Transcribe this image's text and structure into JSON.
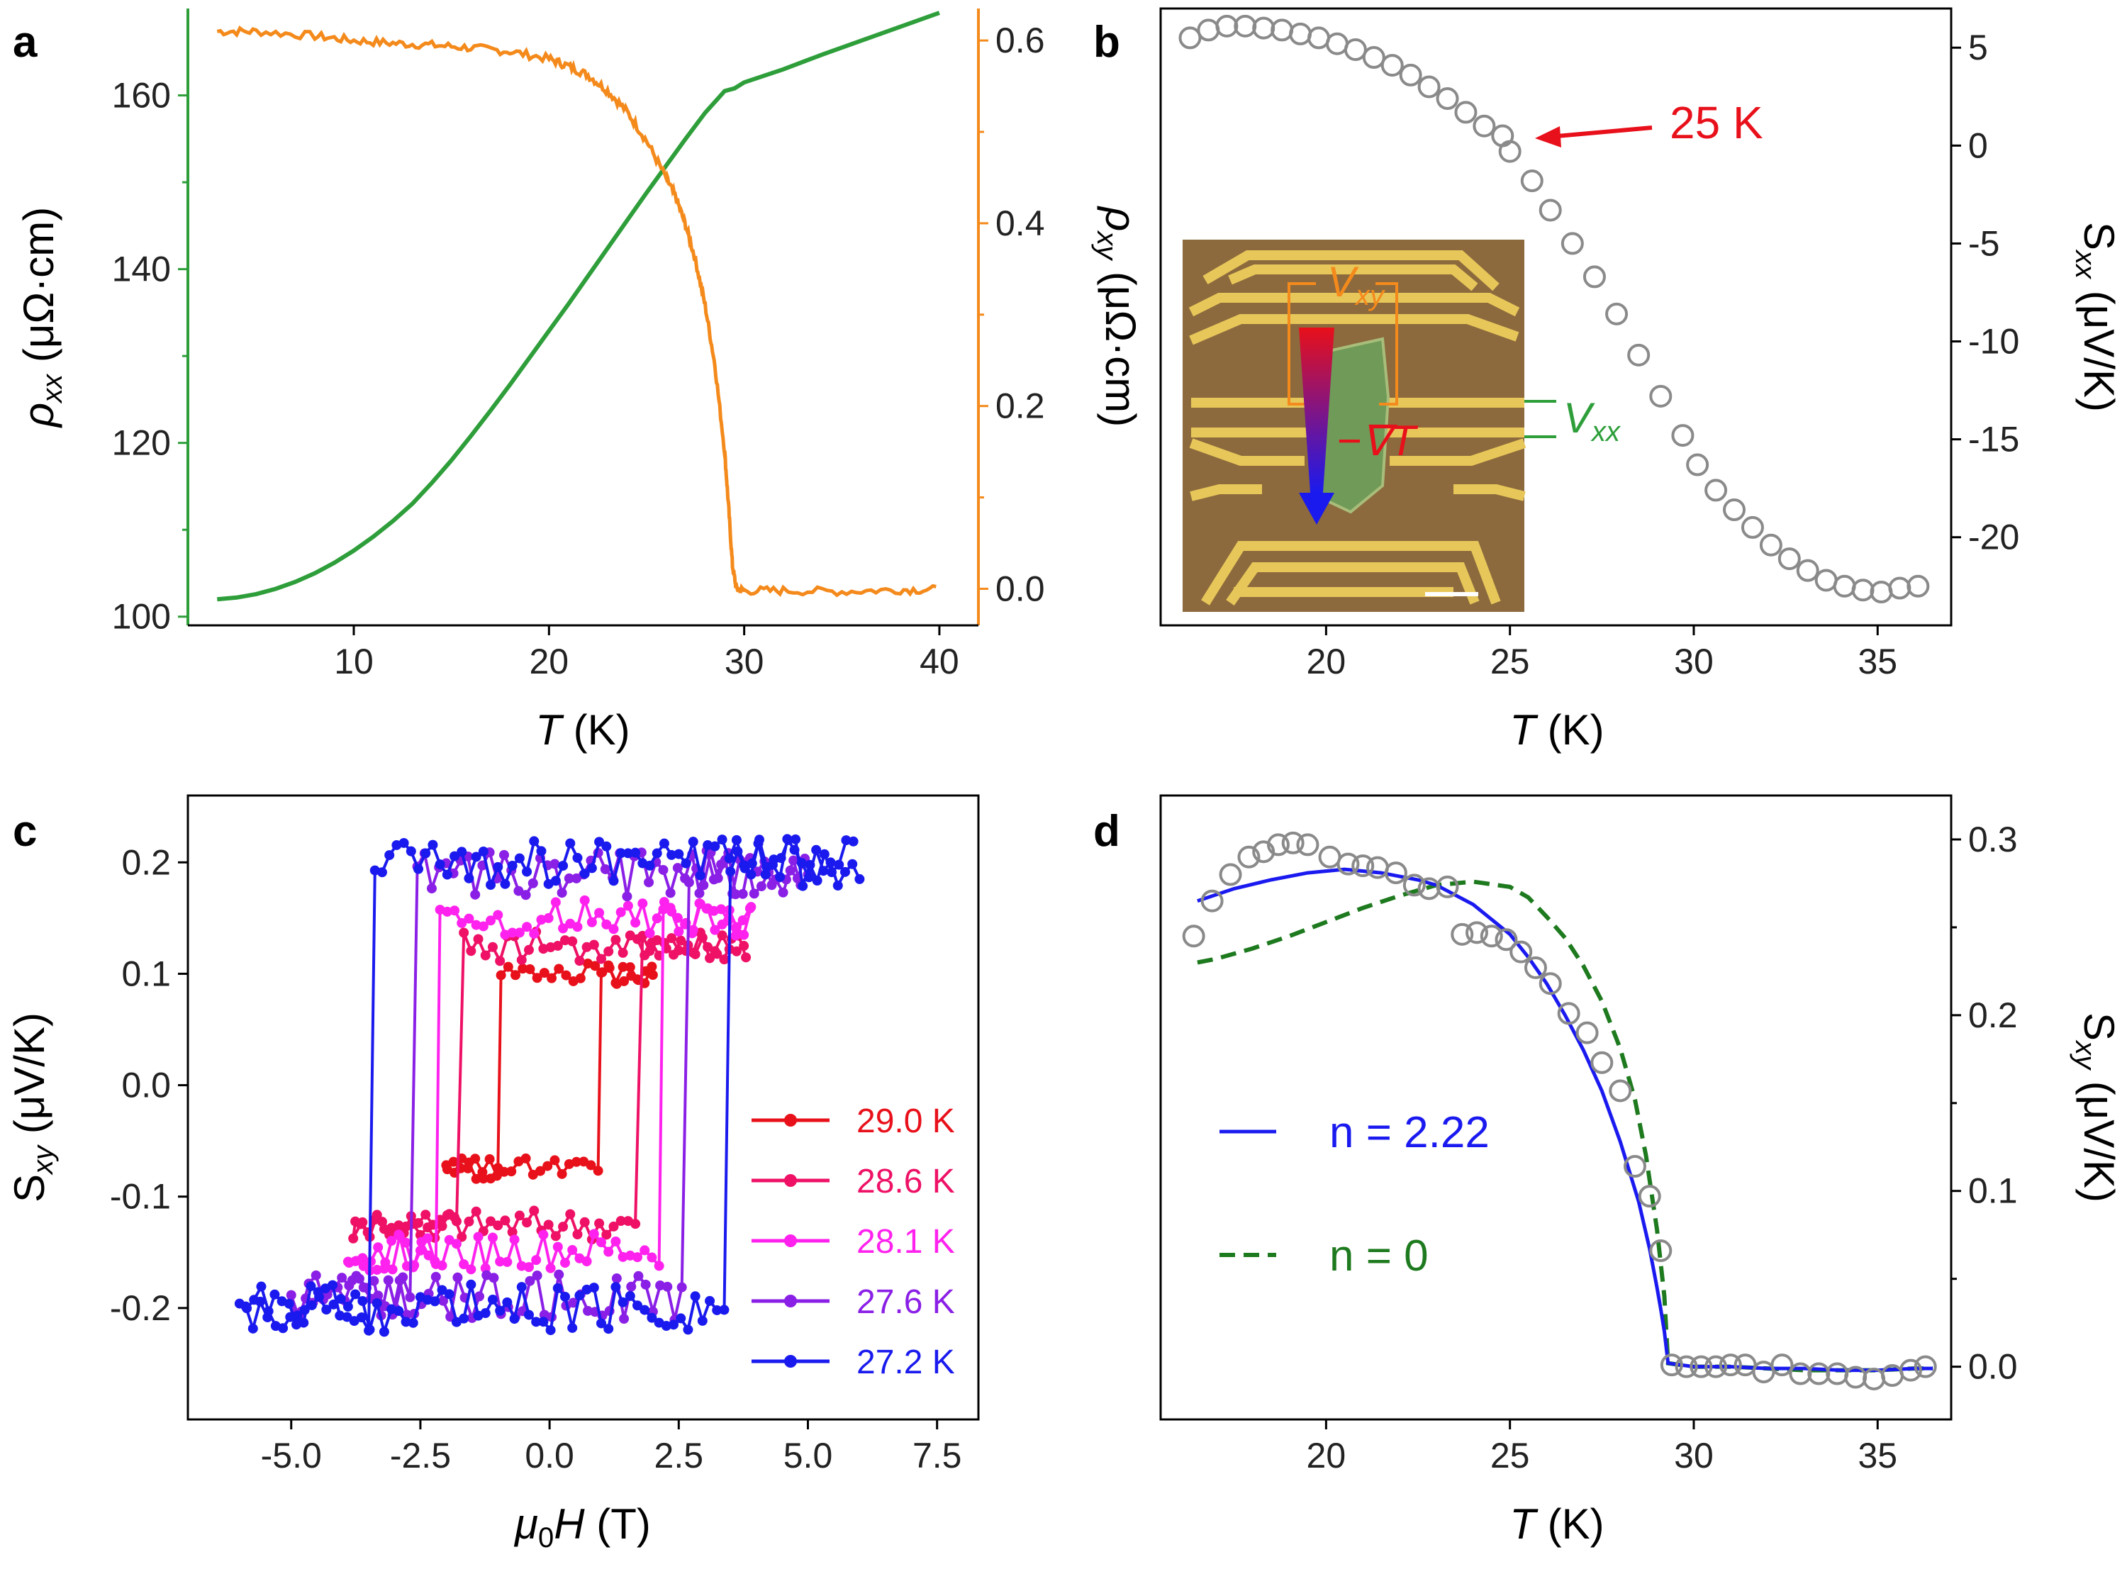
{
  "colors": {
    "green": "#2e9e3a",
    "orange": "#f48a1c",
    "gray_marker": "#8a8a8a",
    "red": "#e8101a",
    "crimson": "#ee1166",
    "magenta": "#ff22ee",
    "purple": "#8a1fe6",
    "blue": "#1a1aee",
    "fit_blue": "#1a1af0",
    "fit_green": "#1e7a1e"
  },
  "chart_data": [
    {
      "panel": "a",
      "type": "line",
      "xlabel": "T (K)",
      "xlabel_main": "T",
      "xlabel_unit": " (K)",
      "ylabel_left": "ρxx (μΩ·cm)",
      "ylabel_right": "ρxy (μΩ·cm)",
      "xlim": [
        1.5,
        42
      ],
      "ylim_left": [
        99,
        170
      ],
      "ylim_right": [
        -0.04,
        0.635
      ],
      "xticks": [
        10,
        20,
        30,
        40
      ],
      "xtick_labels": [
        "10",
        "20",
        "30",
        "40"
      ],
      "yticks_left": [
        100,
        120,
        140,
        160
      ],
      "ytick_labels_left": [
        "100",
        "120",
        "140",
        "160"
      ],
      "yticks_right": [
        0.0,
        0.2,
        0.4,
        0.6
      ],
      "ytick_labels_right": [
        "0.0",
        "0.2",
        "0.4",
        "0.6"
      ],
      "series": [
        {
          "axis": "left",
          "x": [
            3,
            4,
            5,
            6,
            7,
            8,
            9,
            10,
            11,
            12,
            13,
            14,
            15,
            16,
            17,
            18,
            19,
            20,
            21,
            22,
            23,
            24,
            25,
            26,
            27,
            28,
            29,
            29.5,
            30,
            32,
            34,
            36,
            38,
            40
          ],
          "y": [
            102,
            102.2,
            102.6,
            103.2,
            104,
            105,
            106.2,
            107.6,
            109.2,
            111,
            113,
            115.4,
            118,
            120.8,
            123.7,
            126.7,
            129.8,
            132.9,
            136,
            139.2,
            142.4,
            145.6,
            148.8,
            151.9,
            155,
            158,
            160.5,
            160.8,
            161.5,
            163,
            164.7,
            166.3,
            167.9,
            169.5
          ]
        },
        {
          "axis": "right",
          "x": [
            3,
            5,
            8,
            10,
            12,
            14,
            16,
            18,
            20,
            21,
            22,
            23,
            24,
            25,
            26,
            26.5,
            27,
            27.5,
            28,
            28.5,
            29,
            29.2,
            29.4,
            29.6,
            30,
            32,
            35,
            38,
            40
          ],
          "y": [
            0.61,
            0.61,
            0.605,
            0.6,
            0.597,
            0.595,
            0.592,
            0.588,
            0.58,
            0.572,
            0.562,
            0.545,
            0.522,
            0.49,
            0.45,
            0.428,
            0.398,
            0.36,
            0.31,
            0.245,
            0.15,
            0.09,
            0.025,
            0.0,
            -0.002,
            -0.002,
            -0.003,
            -0.001,
            -0.001
          ]
        }
      ]
    },
    {
      "panel": "b",
      "type": "scatter",
      "xlabel": "T (K)",
      "xlabel_main": "T",
      "xlabel_unit": " (K)",
      "ylabel": "Sxx (μV/K)",
      "xlim": [
        15.5,
        37
      ],
      "ylim": [
        -24.5,
        7
      ],
      "xticks": [
        20,
        25,
        30,
        35
      ],
      "xtick_labels": [
        "20",
        "25",
        "30",
        "35"
      ],
      "yticks": [
        5,
        0,
        -5,
        -10,
        -15,
        -20
      ],
      "ytick_labels": [
        "5",
        "0",
        "-5",
        "-10",
        "-15",
        "-20"
      ],
      "annotation": "25 K",
      "inset_labels": [
        "V",
        "xy",
        "V",
        "xx",
        "−∇T"
      ],
      "series": [
        {
          "x": [
            16.3,
            16.8,
            17.3,
            17.8,
            18.3,
            18.8,
            19.3,
            19.8,
            20.3,
            20.8,
            21.3,
            21.8,
            22.3,
            22.8,
            23.3,
            23.8,
            24.3,
            24.8,
            25.0,
            25.6,
            26.1,
            26.7,
            27.3,
            27.9,
            28.5,
            29.1,
            29.7,
            30.1,
            30.6,
            31.1,
            31.6,
            32.1,
            32.6,
            33.1,
            33.6,
            34.1,
            34.6,
            35.1,
            35.6,
            36.1
          ],
          "y": [
            5.5,
            5.9,
            6.1,
            6.1,
            6.0,
            5.9,
            5.7,
            5.5,
            5.2,
            4.9,
            4.5,
            4.1,
            3.6,
            3.0,
            2.4,
            1.7,
            1.0,
            0.5,
            -0.3,
            -1.8,
            -3.3,
            -5.0,
            -6.7,
            -8.6,
            -10.7,
            -12.8,
            -14.8,
            -16.3,
            -17.6,
            -18.6,
            -19.5,
            -20.4,
            -21.1,
            -21.7,
            -22.2,
            -22.5,
            -22.7,
            -22.8,
            -22.6,
            -22.5
          ]
        }
      ]
    },
    {
      "panel": "c",
      "type": "line",
      "xlabel": "μ0H (T)",
      "ylabel": "Sxy (μV/K)",
      "xlim": [
        -7,
        8.3
      ],
      "ylim": [
        -0.3,
        0.26
      ],
      "xticks": [
        -5,
        -2.5,
        0,
        2.5,
        5,
        7.5
      ],
      "xtick_labels": [
        "-5.0",
        "-2.5",
        "0.0",
        "2.5",
        "5.0",
        "7.5"
      ],
      "yticks": [
        0.2,
        0.1,
        0.0,
        -0.1,
        -0.2
      ],
      "ytick_labels": [
        "0.2",
        "0.1",
        "0.0",
        "-0.1",
        "-0.2"
      ],
      "series": [
        {
          "name": "29.0 K",
          "color_key": "red",
          "hc": 1.0,
          "hi": 0.1,
          "lo": -0.075,
          "satH": 2.0
        },
        {
          "name": "28.6 K",
          "color_key": "crimson",
          "hc": 1.8,
          "hi": 0.125,
          "lo": -0.125,
          "satH": 3.8
        },
        {
          "name": "28.1 K",
          "color_key": "magenta",
          "hc": 2.2,
          "hi": 0.15,
          "lo": -0.15,
          "satH": 3.9
        },
        {
          "name": "27.6 K",
          "color_key": "purple",
          "hc": 2.7,
          "hi": 0.19,
          "lo": -0.19,
          "satH": 5.0
        },
        {
          "name": "27.2 K",
          "color_key": "blue",
          "hc": 3.5,
          "hi": 0.2,
          "lo": -0.2,
          "satH": 6.0
        }
      ]
    },
    {
      "panel": "d",
      "type": "line",
      "xlabel": "T (K)",
      "xlabel_main": "T",
      "xlabel_unit": " (K)",
      "ylabel": "Sxy (μV/K)",
      "xlim": [
        15.5,
        37
      ],
      "ylim": [
        -0.03,
        0.325
      ],
      "xticks": [
        20,
        25,
        30,
        35
      ],
      "xtick_labels": [
        "20",
        "25",
        "30",
        "35"
      ],
      "yticks": [
        0.3,
        0.2,
        0.1,
        0.0
      ],
      "ytick_labels": [
        "0.3",
        "0.2",
        "0.1",
        "0.0"
      ],
      "series": [
        {
          "type": "scatter",
          "x": [
            16.4,
            16.9,
            17.4,
            17.9,
            18.3,
            18.7,
            19.1,
            19.5,
            20.1,
            20.6,
            21.0,
            21.4,
            21.9,
            22.4,
            22.8,
            23.3,
            23.7,
            24.1,
            24.5,
            24.9,
            25.3,
            25.7,
            26.1,
            26.6,
            27.1,
            27.5,
            28.0,
            28.4,
            28.8,
            29.1,
            29.4,
            29.8,
            30.2,
            30.6,
            31.0,
            31.4,
            31.9,
            32.4,
            32.9,
            33.4,
            33.9,
            34.4,
            34.9,
            35.4,
            35.9,
            36.3
          ],
          "y": [
            0.245,
            0.265,
            0.28,
            0.29,
            0.293,
            0.297,
            0.298,
            0.297,
            0.29,
            0.286,
            0.285,
            0.284,
            0.281,
            0.274,
            0.272,
            0.273,
            0.246,
            0.247,
            0.245,
            0.243,
            0.236,
            0.227,
            0.218,
            0.201,
            0.19,
            0.173,
            0.157,
            0.114,
            0.097,
            0.066,
            0.001,
            0.0,
            0.0,
            0.0,
            0.001,
            0.001,
            -0.003,
            0.001,
            -0.004,
            -0.004,
            -0.004,
            -0.006,
            -0.007,
            -0.005,
            -0.002,
            0.0
          ]
        },
        {
          "name": "n = 2.22",
          "type": "line",
          "style": "solid",
          "x": [
            16.5,
            17.5,
            18.5,
            19.5,
            20.5,
            21.5,
            22.5,
            23.0,
            24.0,
            25.0,
            25.5,
            26.0,
            26.5,
            27.0,
            27.5,
            28.0,
            28.5,
            28.8,
            29.0,
            29.1,
            29.2,
            29.3,
            30.0,
            31.0,
            32.0,
            33.0,
            34.0,
            35.0,
            36.0,
            36.5
          ],
          "y": [
            0.265,
            0.272,
            0.277,
            0.281,
            0.283,
            0.281,
            0.277,
            0.274,
            0.263,
            0.246,
            0.233,
            0.218,
            0.2,
            0.18,
            0.157,
            0.128,
            0.094,
            0.067,
            0.045,
            0.033,
            0.02,
            0.002,
            0.0,
            0.0,
            -0.001,
            -0.001,
            -0.002,
            -0.002,
            -0.001,
            -0.001
          ]
        },
        {
          "name": "n = 0",
          "type": "line",
          "style": "dashed",
          "x": [
            16.5,
            17.0,
            18.0,
            19.0,
            20.0,
            21.0,
            22.0,
            23.0,
            24.0,
            25.0,
            25.5,
            26.0,
            26.5,
            27.0,
            27.5,
            28.0,
            28.4,
            28.7,
            29.0,
            29.2,
            29.3,
            30.0,
            31.0,
            32.0,
            33.0,
            34.0,
            35.0,
            36.0,
            36.5
          ],
          "y": [
            0.23,
            0.232,
            0.238,
            0.245,
            0.253,
            0.261,
            0.268,
            0.274,
            0.276,
            0.273,
            0.267,
            0.256,
            0.244,
            0.228,
            0.208,
            0.181,
            0.152,
            0.12,
            0.078,
            0.04,
            0.002,
            0.0,
            0.0,
            -0.001,
            -0.002,
            -0.002,
            -0.002,
            -0.001,
            -0.001
          ]
        }
      ]
    }
  ]
}
